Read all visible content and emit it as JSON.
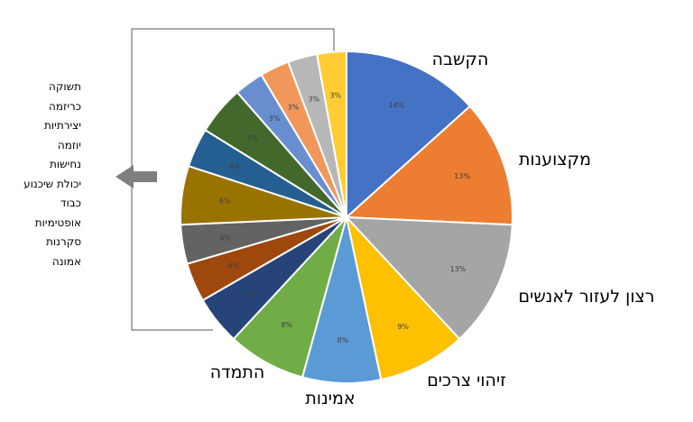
{
  "chart_data": {
    "type": "pie",
    "slices": [
      {
        "label": "הקשבה",
        "value": 14,
        "value_label": "14%",
        "color": "#4472C4"
      },
      {
        "label": "מקצוענות",
        "value": 13,
        "value_label": "13%",
        "color": "#ED7D31"
      },
      {
        "label": "רצון לעזור לאנשים",
        "value": 13,
        "value_label": "13%",
        "color": "#A5A5A5"
      },
      {
        "label": "זיהוי צרכים",
        "value": 9,
        "value_label": "9%",
        "color": "#FFC000"
      },
      {
        "label": "אמינות",
        "value": 8,
        "value_label": "8%",
        "color": "#5B9BD5"
      },
      {
        "label": "התמדה",
        "value": 8,
        "value_label": "8%",
        "color": "#70AD47"
      },
      {
        "label": "",
        "value": 5,
        "value_label": "5%",
        "color": "#264478"
      },
      {
        "label": "",
        "value": 4,
        "value_label": "4%",
        "color": "#9E480E"
      },
      {
        "label": "",
        "value": 4,
        "value_label": "4%",
        "color": "#636363"
      },
      {
        "label": "",
        "value": 6,
        "value_label": "6%",
        "color": "#997300"
      },
      {
        "label": "",
        "value": 4,
        "value_label": "4%",
        "color": "#255E91"
      },
      {
        "label": "",
        "value": 5,
        "value_label": "5%",
        "color": "#43682B"
      },
      {
        "label": "",
        "value": 3,
        "value_label": "3%",
        "color": "#698ED0"
      },
      {
        "label": "",
        "value": 3,
        "value_label": "3%",
        "color": "#F1975A"
      },
      {
        "label": "",
        "value": 3,
        "value_label": "3%",
        "color": "#B7B7B7"
      },
      {
        "label": "",
        "value": 3,
        "value_label": "3%",
        "color": "#FFCD33"
      }
    ],
    "small_slices_list": [
      "תשוקה",
      "כריזמה",
      "יצירתיות",
      "יוזמה",
      "נחישות",
      "יכולת שיכנוע",
      "כבוד",
      "אופטימיות",
      "סקרנות",
      "אמונה"
    ],
    "bracket_color": "#595959",
    "arrow_color": "#7F7F7F"
  }
}
